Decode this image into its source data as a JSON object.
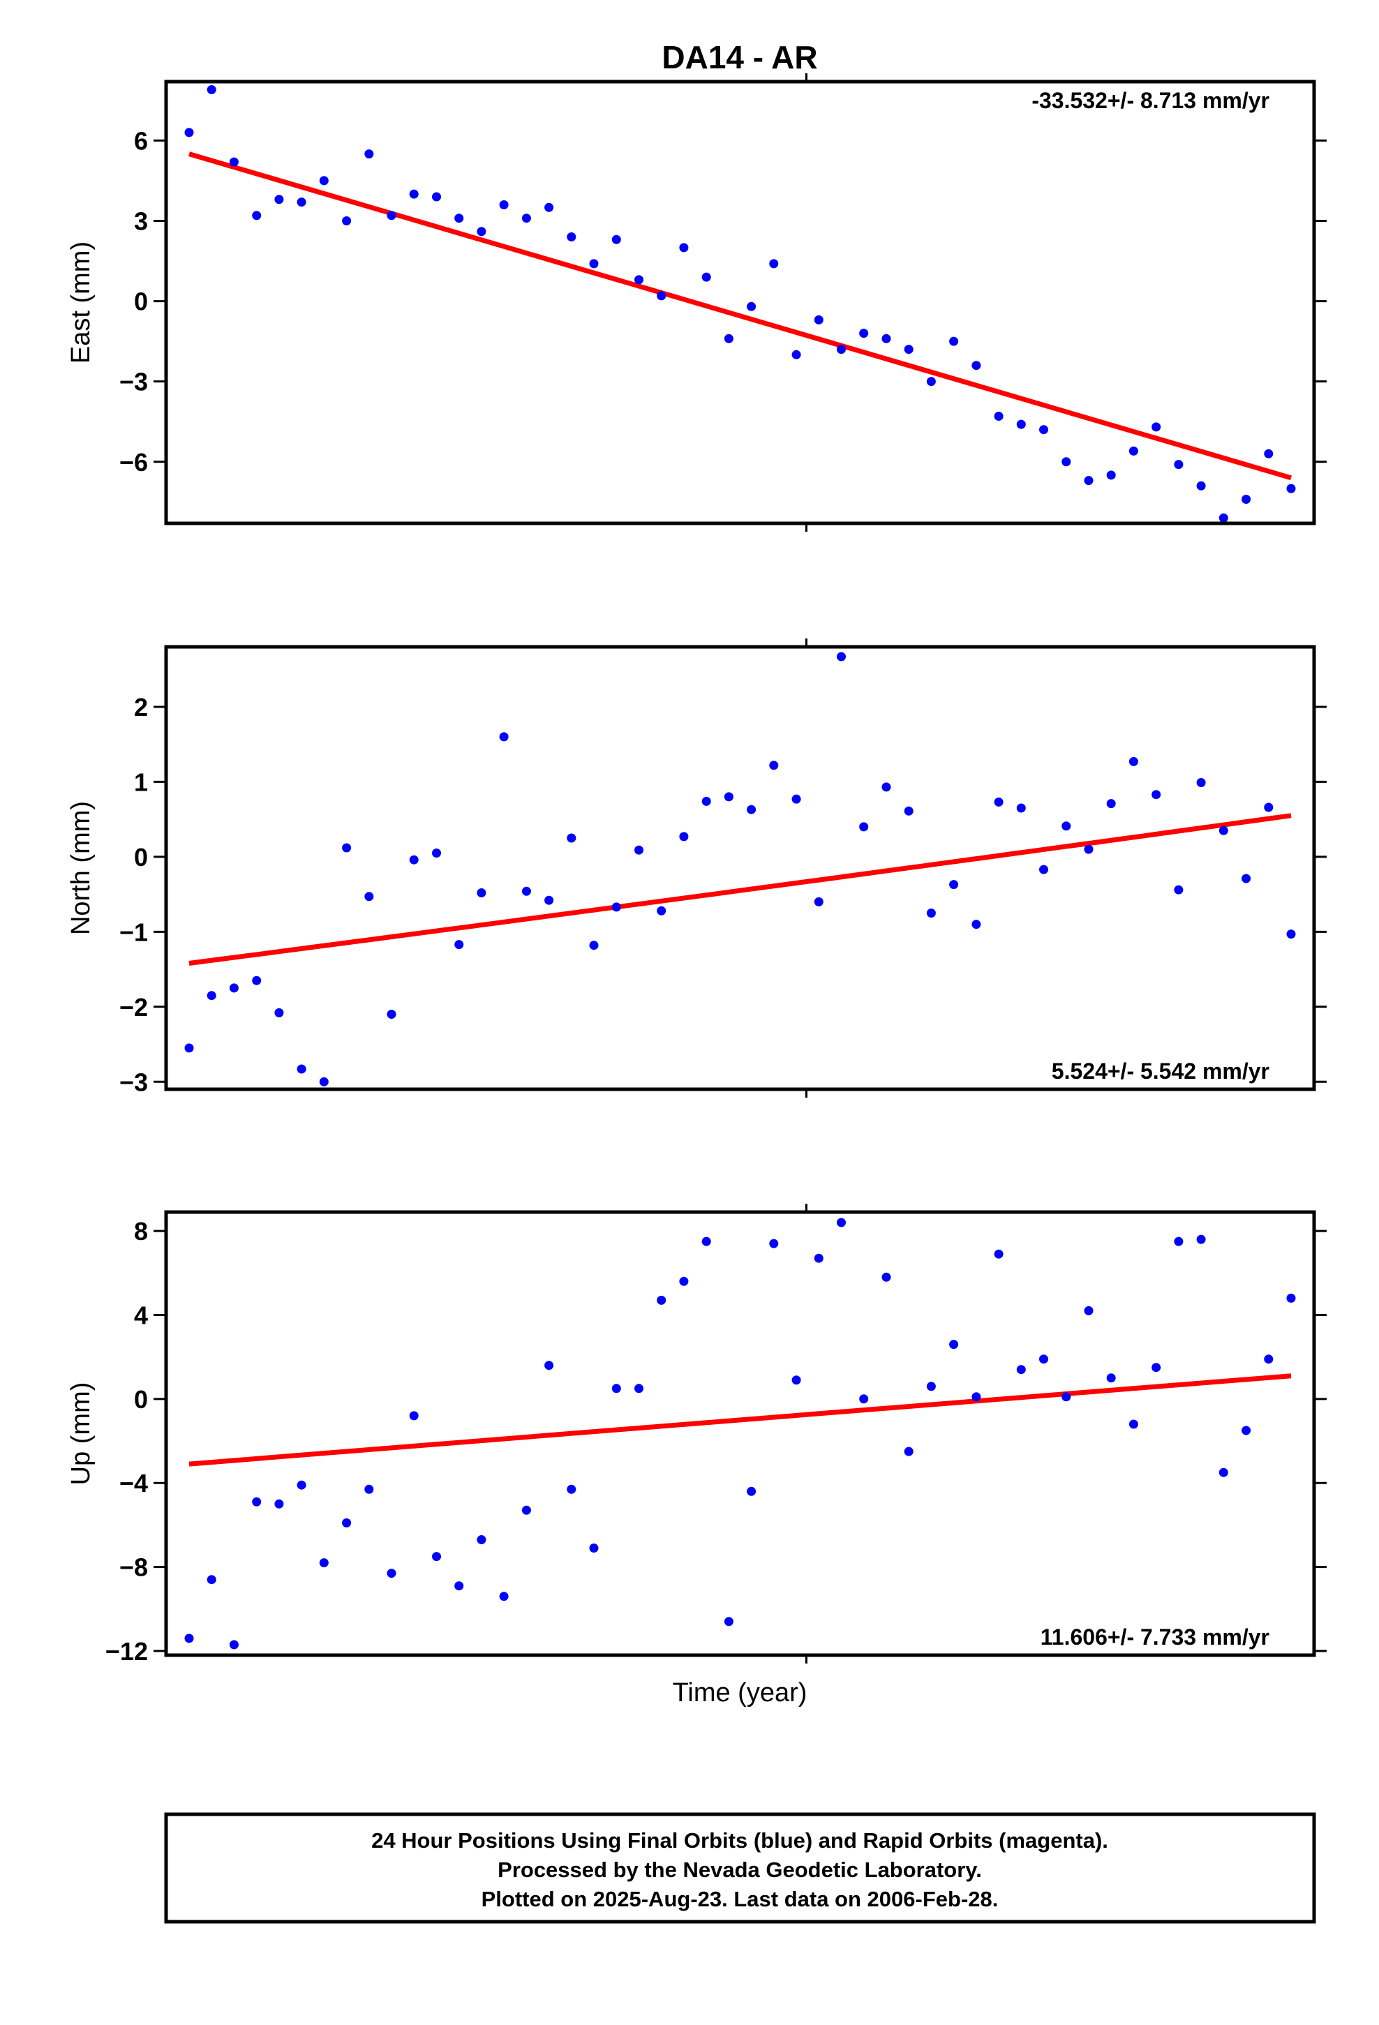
{
  "figure": {
    "title": "DA14 - AR",
    "xlabel": "Time (year)",
    "footer": [
      "24 Hour Positions Using Final Orbits (blue) and Rapid Orbits (magenta).",
      "Processed by the Nevada Geodetic Laboratory.",
      "Plotted on 2025-Aug-23. Last data on 2006-Feb-28."
    ]
  },
  "colors": {
    "points": "#0000ff",
    "fit": "#ff0000",
    "frame": "#000000"
  },
  "chart_data": [
    {
      "type": "scatter",
      "ylabel": "East (mm)",
      "rate_label": "-33.532+/- 8.713 mm/yr",
      "ylim": [
        -8.3,
        8.2
      ],
      "yticks": [
        6,
        3,
        0,
        -3,
        -6
      ],
      "ytick_labels": [
        "6",
        "3",
        "0",
        "−3",
        "−6"
      ],
      "values": [
        6.3,
        7.9,
        5.2,
        3.2,
        3.8,
        3.7,
        4.5,
        3.0,
        5.5,
        3.2,
        4.0,
        3.9,
        3.1,
        2.6,
        3.6,
        3.1,
        3.5,
        2.4,
        1.4,
        2.3,
        0.8,
        0.2,
        2.0,
        0.9,
        -1.4,
        -0.2,
        1.4,
        -2.0,
        -0.7,
        -1.8,
        -1.2,
        -1.4,
        -1.8,
        -3.0,
        -1.5,
        -2.4,
        -4.3,
        -4.6,
        -4.8,
        -6.0,
        -6.7,
        -6.5,
        -5.6,
        -4.7,
        -6.1,
        -6.9,
        -8.1,
        -7.4,
        -5.7,
        -7.0
      ],
      "fit": [
        5.5,
        -6.6
      ],
      "fit_type": "linear"
    },
    {
      "type": "scatter",
      "ylabel": "North (mm)",
      "rate_label": "5.524+/- 5.542 mm/yr",
      "ylim": [
        -3.1,
        2.8
      ],
      "yticks": [
        2,
        1,
        0,
        -1,
        -2,
        -3
      ],
      "ytick_labels": [
        "2",
        "1",
        "0",
        "−1",
        "−2",
        "−3"
      ],
      "values": [
        -2.55,
        -1.85,
        -1.75,
        -1.65,
        -2.08,
        -2.83,
        -3.0,
        0.12,
        -0.53,
        -2.1,
        -0.04,
        0.05,
        -1.17,
        -0.48,
        1.6,
        -0.46,
        -0.58,
        0.25,
        -1.18,
        -0.67,
        0.09,
        -0.72,
        0.27,
        0.74,
        0.8,
        0.63,
        1.22,
        0.77,
        -0.6,
        2.67,
        0.4,
        0.93,
        0.61,
        -0.75,
        -0.37,
        -0.9,
        0.73,
        0.65,
        -0.17,
        0.41,
        0.1,
        0.71,
        1.27,
        0.83,
        -0.44,
        0.99,
        0.35,
        -0.29,
        0.66,
        -1.03
      ],
      "fit": [
        -1.42,
        -0.45,
        0.55
      ],
      "fit_type": "quadratic"
    },
    {
      "type": "scatter",
      "ylabel": "Up (mm)",
      "rate_label": "11.606+/- 7.733 mm/yr",
      "ylim": [
        -12.2,
        8.9
      ],
      "yticks": [
        8,
        4,
        0,
        -4,
        -8,
        -12
      ],
      "ytick_labels": [
        "8",
        "4",
        "0",
        "−4",
        "−8",
        "−12"
      ],
      "values": [
        -11.4,
        -8.6,
        -11.7,
        -4.9,
        -5.0,
        -4.1,
        -7.8,
        -5.9,
        -4.3,
        -8.3,
        -0.8,
        -7.5,
        -8.9,
        -6.7,
        -9.4,
        -5.3,
        1.6,
        -4.3,
        -7.1,
        0.5,
        0.5,
        4.7,
        5.6,
        7.5,
        -10.6,
        -4.4,
        7.4,
        0.9,
        6.7,
        8.4,
        0.0,
        5.8,
        -2.5,
        0.6,
        2.6,
        0.1,
        6.9,
        1.4,
        1.9,
        0.1,
        4.2,
        1.0,
        -1.2,
        1.5,
        7.5,
        7.6,
        -3.5,
        -1.5,
        1.9,
        4.8
      ],
      "fit": [
        -3.1,
        1.1
      ],
      "fit_type": "linear"
    }
  ]
}
